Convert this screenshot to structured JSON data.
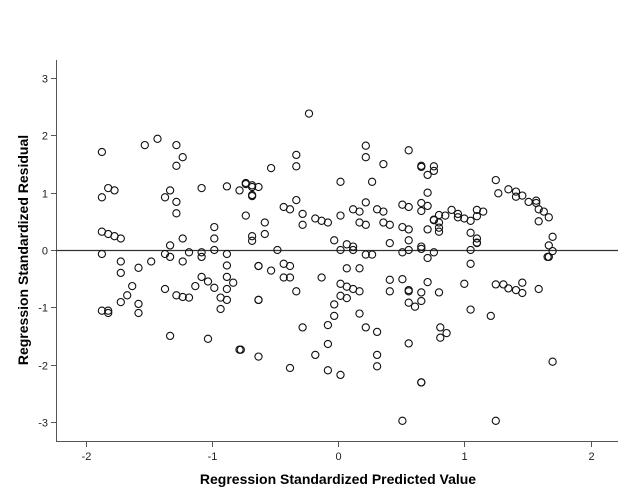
{
  "chart_data": {
    "type": "scatter",
    "title": "",
    "xlabel": "Regression Standardized Predicted Value",
    "ylabel": "Regression Standardized Residual",
    "xlim": [
      -2.23,
      2.23
    ],
    "ylim": [
      -3.3,
      3.3
    ],
    "xticks": [
      -2,
      -1,
      0,
      1,
      2
    ],
    "yticks": [
      -3,
      -2,
      -1,
      0,
      1,
      2,
      3
    ],
    "reference_line": {
      "y": 0
    },
    "grid": false,
    "legend": null,
    "marker": "open-circle",
    "points_px_note": "values estimated from pixel positions",
    "x": [
      -1.87,
      -1.82,
      -1.77,
      -1.87,
      -1.87,
      -1.82,
      -1.77,
      -1.72,
      -1.87,
      -1.53,
      -1.43,
      -1.28,
      -1.23,
      -1.28,
      -1.08,
      -1.33,
      -1.37,
      -1.28,
      -1.28,
      -0.98,
      -1.23,
      -0.98,
      -1.33,
      -0.98,
      -1.37,
      -1.33,
      -1.18,
      -1.08,
      -0.88,
      -0.78,
      -0.73,
      -0.68,
      -0.68,
      -0.73,
      -0.68,
      -0.88,
      -1.72,
      -1.72,
      -1.58,
      -1.63,
      -1.67,
      -1.72,
      -1.82,
      -1.87,
      -1.82,
      -1.58,
      -1.58,
      -1.48,
      -1.37,
      -1.28,
      -1.23,
      -1.18,
      -1.08,
      -1.03,
      -1.13,
      -0.98,
      -0.88,
      -0.83,
      -0.88,
      -0.93,
      -0.93,
      -1.33,
      -1.03,
      -0.78,
      -0.63,
      -0.88,
      -0.88,
      -0.63,
      -0.63,
      -1.23,
      -1.08,
      -0.23,
      0.22,
      0.22,
      0.56,
      0.36,
      0.66,
      0.76,
      0.71,
      -0.33,
      -0.33,
      -0.53,
      -0.73,
      -0.68,
      -0.63,
      -0.68,
      0.02,
      0.27,
      -0.33,
      -0.43,
      -0.38,
      -0.28,
      -0.28,
      -0.18,
      -0.13,
      -0.08,
      0.02,
      0.12,
      0.17,
      0.22,
      0.31,
      0.36,
      0.51,
      0.56,
      0.66,
      0.17,
      0.22,
      0.36,
      0.41,
      0.51,
      0.56,
      0.71,
      0.8,
      0.8,
      -0.58,
      -0.58,
      -0.68,
      -0.03,
      0.07,
      0.12,
      0.41,
      0.56,
      0.66,
      0.66,
      -0.48,
      0.02,
      0.12,
      0.22,
      0.27,
      0.51,
      0.56,
      0.76,
      0.71,
      -0.63,
      -0.53,
      -0.43,
      -0.38,
      -0.43,
      -0.38,
      -0.33,
      -0.63,
      -0.13,
      0.07,
      0.17,
      0.02,
      0.07,
      0.12,
      0.17,
      0.02,
      0.07,
      -0.03,
      -0.03,
      0.17,
      -0.08,
      -0.28,
      0.22,
      0.31,
      -0.08,
      -0.18,
      0.31,
      0.31,
      -0.38,
      -0.08,
      0.02,
      -0.77,
      0.41,
      0.41,
      0.51,
      0.56,
      0.56,
      0.56,
      0.61,
      0.66,
      0.71,
      0.8,
      0.56,
      0.66,
      0.51,
      0.66,
      0.76,
      0.71,
      0.66,
      0.71,
      0.76,
      0.76,
      0.85,
      0.8,
      0.8,
      0.9,
      0.95,
      0.95,
      1.0,
      1.05,
      1.05,
      1.1,
      1.1,
      1.15,
      1.1,
      1.1,
      1.1,
      1.05,
      1.27,
      1.25,
      1.35,
      1.41,
      1.51,
      1.57,
      1.41,
      1.46,
      1.59,
      1.59,
      1.57,
      1.63,
      1.67,
      1.7,
      1.7,
      1.67,
      1.67,
      1.05,
      1.0,
      1.25,
      1.35,
      1.46,
      1.46,
      1.59,
      0.66,
      1.05,
      1.21,
      0.81,
      0.86,
      0.81,
      1.7,
      0.66,
      1.25,
      1.31,
      1.41,
      1.66
    ],
    "y": [
      1.71,
      1.08,
      1.04,
      0.92,
      0.32,
      0.28,
      0.24,
      0.2,
      -0.07,
      1.83,
      1.94,
      1.83,
      1.62,
      1.47,
      1.08,
      1.04,
      0.92,
      0.84,
      0.64,
      0.4,
      0.2,
      0.2,
      0.08,
      0.0,
      -0.07,
      -0.12,
      -0.04,
      -0.12,
      1.11,
      1.04,
      1.15,
      1.1,
      0.96,
      0.6,
      0.16,
      -0.07,
      -0.2,
      -0.4,
      -0.31,
      -0.63,
      -0.79,
      -0.91,
      -1.06,
      -1.06,
      -1.1,
      -0.94,
      -1.1,
      -0.2,
      -0.68,
      -0.79,
      -0.82,
      -0.83,
      -0.47,
      -0.55,
      -0.63,
      -0.66,
      -0.47,
      -0.57,
      -0.68,
      -0.83,
      -1.03,
      -1.5,
      -1.55,
      -1.74,
      -1.86,
      -0.27,
      -0.87,
      -0.28,
      -0.87,
      -0.2,
      -0.04,
      2.38,
      1.82,
      1.62,
      1.74,
      1.5,
      1.45,
      1.46,
      1.31,
      1.66,
      1.46,
      1.43,
      1.17,
      1.13,
      1.1,
      0.94,
      1.19,
      1.19,
      0.87,
      0.75,
      0.71,
      0.63,
      0.44,
      0.55,
      0.51,
      0.48,
      0.6,
      0.71,
      0.67,
      0.83,
      0.71,
      0.67,
      0.79,
      0.75,
      0.68,
      0.48,
      0.44,
      0.48,
      0.44,
      0.4,
      0.36,
      0.36,
      0.32,
      0.48,
      0.48,
      0.28,
      0.24,
      0.17,
      0.1,
      0.06,
      0.12,
      0.17,
      0.06,
      0.02,
      0.0,
      0.0,
      0.0,
      -0.08,
      -0.08,
      -0.04,
      0.0,
      -0.04,
      -0.14,
      -0.28,
      -0.36,
      -0.24,
      -0.28,
      -0.48,
      -0.48,
      -0.72,
      -0.87,
      -0.48,
      -0.32,
      -0.32,
      -0.59,
      -0.64,
      -0.68,
      -0.72,
      -0.8,
      -0.84,
      -0.95,
      -1.15,
      -1.11,
      -1.31,
      -1.35,
      -1.35,
      -1.43,
      -1.64,
      -1.83,
      -1.83,
      -2.03,
      -2.06,
      -2.1,
      -2.18,
      -1.74,
      -0.52,
      -0.72,
      -0.51,
      -0.7,
      -0.72,
      -0.92,
      -0.99,
      -0.89,
      -0.56,
      -0.74,
      -1.63,
      -2.31,
      -2.98,
      1.47,
      1.38,
      1.0,
      0.82,
      0.77,
      0.53,
      0.52,
      0.6,
      0.39,
      0.61,
      0.7,
      0.63,
      0.57,
      0.55,
      0.51,
      0.3,
      0.2,
      0.7,
      0.67,
      0.12,
      0.13,
      0.59,
      0.0,
      0.99,
      1.22,
      1.06,
      0.93,
      0.84,
      0.86,
      1.02,
      0.95,
      0.71,
      0.5,
      0.82,
      0.67,
      0.08,
      -0.02,
      0.23,
      -0.12,
      0.57,
      -0.24,
      -0.59,
      -0.6,
      -0.67,
      -0.57,
      -0.75,
      -0.68,
      -0.74,
      -1.04,
      -1.15,
      -1.35,
      -1.45,
      -1.53,
      -1.95,
      -2.31,
      -2.98,
      -0.6,
      -0.7,
      -0.12
    ]
  }
}
